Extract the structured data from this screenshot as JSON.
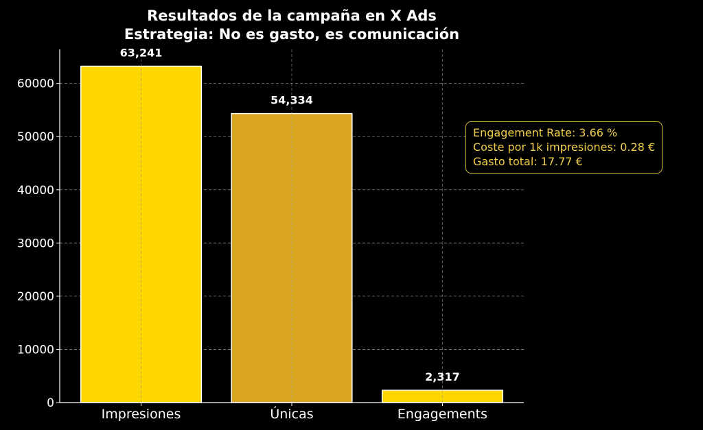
{
  "chart_data": {
    "type": "bar",
    "title": "Resultados de la campaña en X Ads",
    "subtitle": "Estrategia: No es gasto, es comunicación",
    "categories": [
      "Impresiones",
      "Únicas",
      "Engagements"
    ],
    "values": [
      63241,
      54334,
      2317
    ],
    "data_labels": [
      "63,241",
      "54,334",
      "2,317"
    ],
    "bar_colors": [
      "#FFD700",
      "#DAA520",
      "#FFD700"
    ],
    "edge_color": "#FFFFFF",
    "ylim": [
      0,
      66403
    ],
    "yticks": [
      0,
      10000,
      20000,
      30000,
      40000,
      50000,
      60000
    ],
    "ytick_labels": [
      "0",
      "10000",
      "20000",
      "30000",
      "40000",
      "50000",
      "60000"
    ],
    "xlabel": "",
    "ylabel": "",
    "grid": true,
    "background": "#000000",
    "annotation": {
      "lines": [
        "Engagement Rate: 3.66 %",
        "Coste por 1k impresiones: 0.28 €",
        "Gasto total: 17.77 €"
      ],
      "color": "#F2CF4A",
      "placement": "right"
    }
  }
}
